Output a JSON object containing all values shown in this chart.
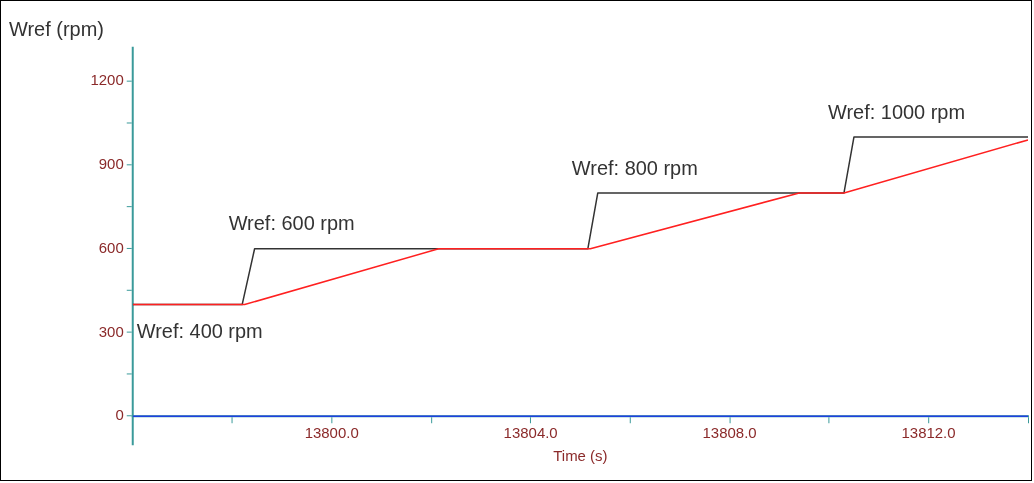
{
  "chart_data": {
    "type": "line",
    "xlabel": "Time (s)",
    "ylabel": "Wref (rpm)",
    "xlim": [
      13796,
      13814
    ],
    "ylim": [
      -100,
      1320
    ],
    "xticks": [
      {
        "value": 13798,
        "label": null
      },
      {
        "value": 13800,
        "label": "13800.0"
      },
      {
        "value": 13802,
        "label": null
      },
      {
        "value": 13804,
        "label": "13804.0"
      },
      {
        "value": 13806,
        "label": null
      },
      {
        "value": 13808,
        "label": "13808.0"
      },
      {
        "value": 13810,
        "label": null
      },
      {
        "value": 13812,
        "label": "13812.0"
      },
      {
        "value": 13814,
        "label": null
      }
    ],
    "yticks": [
      0,
      {
        "value": 150,
        "label": null
      },
      300,
      {
        "value": 450,
        "label": null
      },
      600,
      {
        "value": 750,
        "label": null
      },
      900,
      {
        "value": 1050,
        "label": null
      },
      1200
    ],
    "grid": false,
    "legend": false,
    "marker": "none",
    "line_style": "solid",
    "series": [
      {
        "color": "#ff2020",
        "x": [
          13796,
          13798.25,
          13802.15,
          13805.2,
          13809.4,
          13810.3,
          13814
        ],
        "values": [
          400,
          400,
          600,
          600,
          800,
          800,
          990
        ]
      },
      {
        "color": "#333333",
        "x": [
          13796,
          13798.2,
          13798.45,
          13805.15,
          13805.35,
          13810.3,
          13810.5,
          13814
        ],
        "values": [
          400,
          400,
          600,
          600,
          800,
          800,
          1000,
          1000
        ]
      },
      {
        "color": "#1f3fdf",
        "x": [
          13796,
          13814
        ],
        "values": [
          0,
          0
        ]
      }
    ],
    "annotations": [
      {
        "text": "Wref: 400 rpm",
        "x": 13796,
        "y": 400
      },
      {
        "text": "Wref: 600 rpm",
        "x": 13798.45,
        "y": 600
      },
      {
        "text": "Wref: 800 rpm",
        "x": 13805.35,
        "y": 800
      },
      {
        "text": "Wref: 1000 rpm",
        "x": 13810.5,
        "y": 1000
      }
    ]
  }
}
